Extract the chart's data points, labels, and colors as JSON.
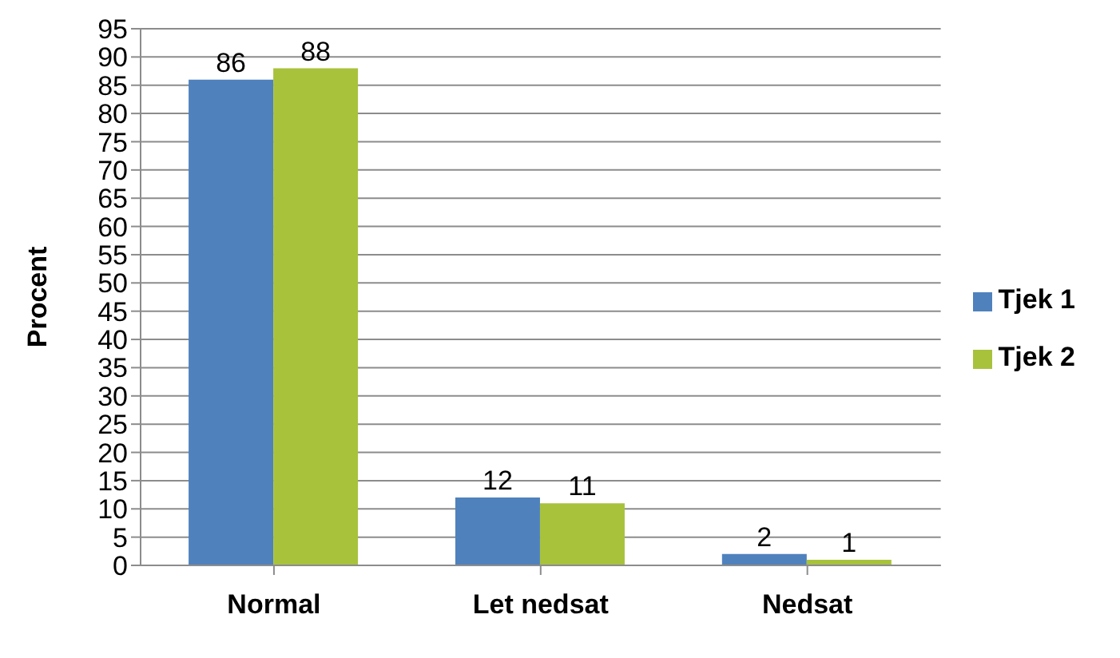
{
  "chart_data": {
    "type": "bar",
    "ylabel": "Procent",
    "categories": [
      "Normal",
      "Let nedsat",
      "Nedsat"
    ],
    "series": [
      {
        "name": "Tjek 1",
        "color": "#4f81bd",
        "values": [
          86,
          12,
          2
        ]
      },
      {
        "name": "Tjek 2",
        "color": "#a8c23c",
        "values": [
          88,
          11,
          1
        ]
      }
    ],
    "ylim": [
      0,
      95
    ],
    "yticks": [
      0,
      5,
      10,
      15,
      20,
      25,
      30,
      35,
      40,
      45,
      50,
      55,
      60,
      65,
      70,
      75,
      80,
      85,
      90,
      95
    ],
    "grid": "y",
    "legend": "right",
    "data_labels": true
  }
}
